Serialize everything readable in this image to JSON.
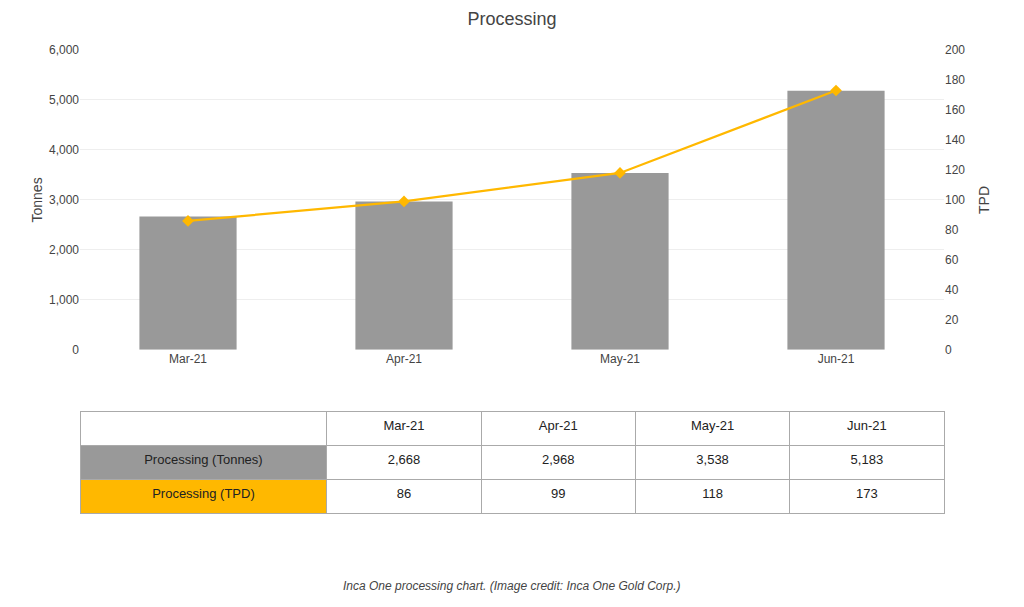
{
  "chart_data": {
    "type": "bar",
    "title": "Processing",
    "categories": [
      "Mar-21",
      "Apr-21",
      "May-21",
      "Jun-21"
    ],
    "series": [
      {
        "name": "Processing (Tonnes)",
        "type": "bar",
        "color": "#999999",
        "values": [
          2668,
          2968,
          3538,
          5183
        ],
        "value_labels": [
          "2,668",
          "2,968",
          "3,538",
          "5,183"
        ]
      },
      {
        "name": "Processing (TPD)",
        "type": "line",
        "axis": "y2",
        "color": "#FFB800",
        "marker": "diamond",
        "line_style": "solid",
        "values": [
          86,
          99,
          118,
          173
        ]
      }
    ],
    "ylabel": "Tonnes",
    "y2label": "TPD",
    "ylim": [
      0,
      6000
    ],
    "yticks": [
      0,
      {
        "value": 1000,
        "label": "1,000"
      },
      {
        "value": 2000,
        "label": "2,000"
      },
      {
        "value": 3000,
        "label": "3,000"
      },
      {
        "value": 4000,
        "label": "4,000"
      },
      {
        "value": 5000,
        "label": "5,000"
      },
      {
        "value": 6000,
        "label": "6,000"
      }
    ],
    "y2lim": [
      0,
      200
    ],
    "y2ticks": [
      0,
      20,
      40,
      60,
      80,
      100,
      120,
      140,
      160,
      180,
      200
    ],
    "grid": true,
    "annotations": [
      "Inca One processing chart. (Image credit: Inca One Gold Corp.)"
    ]
  }
}
